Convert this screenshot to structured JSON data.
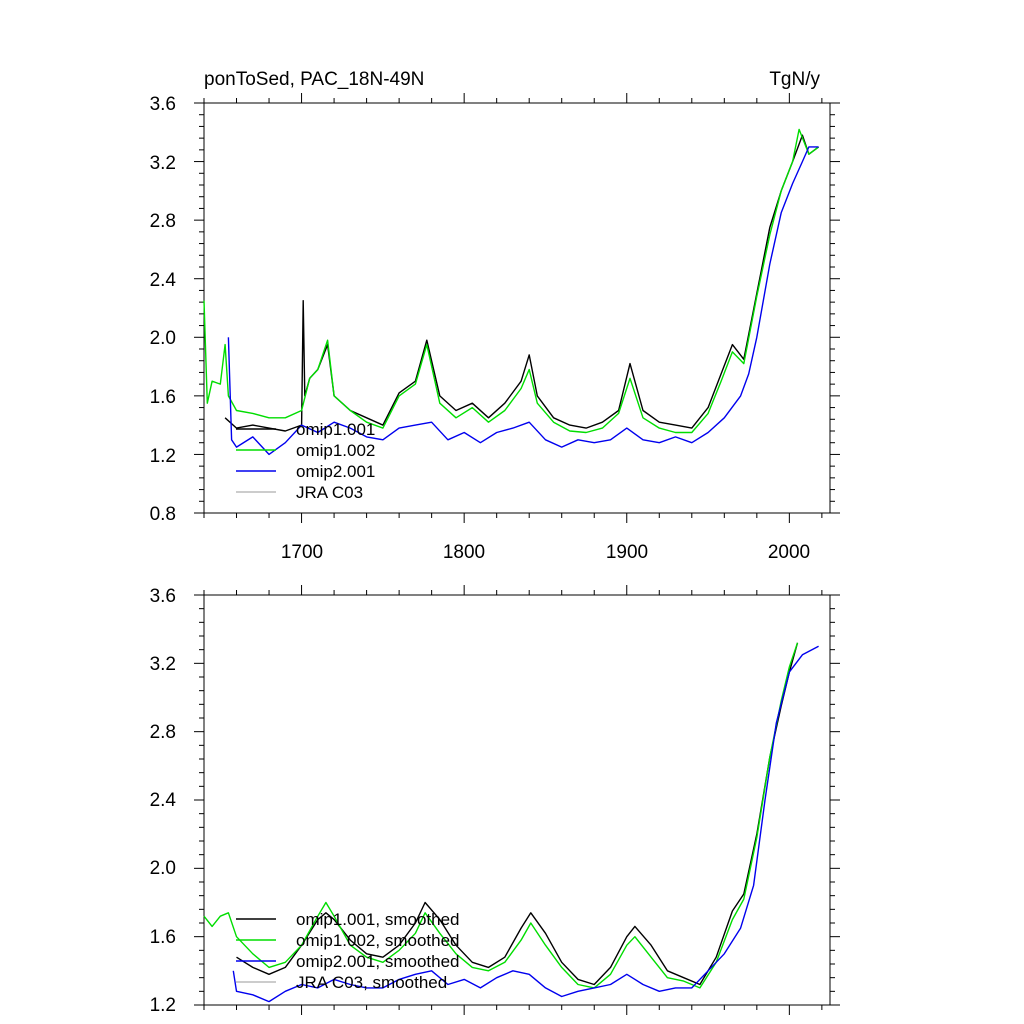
{
  "chart_data": [
    {
      "type": "line",
      "title_left": "ponToSed, PAC_18N-49N",
      "title_right": "TgN/y",
      "xlim": [
        1640,
        2025
      ],
      "ylim": [
        0.8,
        3.6
      ],
      "x_ticks": [
        1700,
        1800,
        1900,
        2000
      ],
      "y_ticks": [
        0.8,
        1.2,
        1.6,
        2.0,
        2.4,
        2.8,
        3.2,
        3.6
      ],
      "y_tick_labels": [
        "0.8",
        "1.2",
        "1.6",
        "2.0",
        "2.4",
        "2.8",
        "3.2",
        "3.6"
      ],
      "x_tick_labels": [
        "1700",
        "1800",
        "1900",
        "2000"
      ],
      "legend": [
        {
          "label": "omip1.001",
          "color": "#000000"
        },
        {
          "label": "omip1.002",
          "color": "#00dd00"
        },
        {
          "label": "omip2.001",
          "color": "#0000ee"
        },
        {
          "label": "JRA C03",
          "color": "#bbbbbb"
        }
      ],
      "series": [
        {
          "name": "omip1.001",
          "color": "#000000",
          "x": [
            1653,
            1660,
            1670,
            1680,
            1690,
            1700,
            1701,
            1702,
            1705,
            1710,
            1716,
            1720,
            1730,
            1740,
            1750,
            1760,
            1770,
            1777,
            1785,
            1795,
            1805,
            1815,
            1825,
            1835,
            1840,
            1845,
            1855,
            1865,
            1875,
            1885,
            1895,
            1902,
            1910,
            1920,
            1930,
            1940,
            1950,
            1958,
            1965,
            1972,
            1980,
            1988,
            1995,
            2002,
            2008,
            2012,
            2018
          ],
          "y": [
            1.45,
            1.38,
            1.4,
            1.38,
            1.36,
            1.4,
            2.25,
            1.6,
            1.72,
            1.78,
            1.95,
            1.6,
            1.5,
            1.45,
            1.4,
            1.62,
            1.7,
            1.98,
            1.6,
            1.5,
            1.55,
            1.45,
            1.55,
            1.7,
            1.88,
            1.6,
            1.45,
            1.4,
            1.38,
            1.42,
            1.5,
            1.82,
            1.5,
            1.42,
            1.4,
            1.38,
            1.52,
            1.75,
            1.95,
            1.85,
            2.3,
            2.75,
            3.0,
            3.2,
            3.38,
            3.25,
            3.3
          ]
        },
        {
          "name": "omip1.002",
          "color": "#00dd00",
          "x": [
            1640,
            1642,
            1645,
            1650,
            1653,
            1655,
            1660,
            1670,
            1680,
            1690,
            1700,
            1705,
            1710,
            1716,
            1720,
            1730,
            1740,
            1750,
            1760,
            1770,
            1777,
            1785,
            1795,
            1805,
            1815,
            1825,
            1835,
            1840,
            1845,
            1855,
            1865,
            1875,
            1885,
            1895,
            1902,
            1910,
            1920,
            1930,
            1940,
            1950,
            1958,
            1965,
            1972,
            1980,
            1988,
            1995,
            2002,
            2006,
            2012,
            2018
          ],
          "y": [
            2.25,
            1.55,
            1.7,
            1.68,
            1.95,
            1.6,
            1.5,
            1.48,
            1.45,
            1.45,
            1.5,
            1.72,
            1.78,
            1.98,
            1.6,
            1.5,
            1.42,
            1.38,
            1.6,
            1.68,
            1.95,
            1.55,
            1.45,
            1.52,
            1.42,
            1.5,
            1.65,
            1.78,
            1.55,
            1.42,
            1.36,
            1.35,
            1.38,
            1.48,
            1.72,
            1.45,
            1.38,
            1.35,
            1.35,
            1.48,
            1.7,
            1.9,
            1.82,
            2.28,
            2.7,
            3.0,
            3.2,
            3.42,
            3.25,
            3.3
          ]
        },
        {
          "name": "omip2.001",
          "color": "#0000ee",
          "x": [
            1655,
            1657,
            1660,
            1670,
            1680,
            1690,
            1700,
            1710,
            1720,
            1730,
            1740,
            1750,
            1760,
            1770,
            1780,
            1790,
            1800,
            1810,
            1820,
            1830,
            1840,
            1850,
            1860,
            1870,
            1880,
            1890,
            1900,
            1910,
            1920,
            1930,
            1940,
            1950,
            1960,
            1970,
            1975,
            1980,
            1988,
            1995,
            2002,
            2008,
            2012,
            2018
          ],
          "y": [
            2.0,
            1.3,
            1.25,
            1.32,
            1.2,
            1.28,
            1.4,
            1.35,
            1.42,
            1.38,
            1.32,
            1.3,
            1.38,
            1.4,
            1.42,
            1.3,
            1.35,
            1.28,
            1.35,
            1.38,
            1.42,
            1.3,
            1.25,
            1.3,
            1.28,
            1.3,
            1.38,
            1.3,
            1.28,
            1.32,
            1.28,
            1.35,
            1.45,
            1.6,
            1.75,
            2.0,
            2.5,
            2.85,
            3.05,
            3.2,
            3.3,
            3.3
          ]
        }
      ]
    },
    {
      "type": "line",
      "xlim": [
        1640,
        2025
      ],
      "ylim": [
        1.2,
        3.6
      ],
      "y_ticks": [
        1.2,
        1.6,
        2.0,
        2.4,
        2.8,
        3.2,
        3.6
      ],
      "y_tick_labels": [
        "1.2",
        "1.6",
        "2.0",
        "2.4",
        "2.8",
        "3.2",
        "3.6"
      ],
      "legend": [
        {
          "label": "omip1.001, smoothed",
          "color": "#000000"
        },
        {
          "label": "omip1.002, smoothed",
          "color": "#00dd00"
        },
        {
          "label": "omip2.001, smoothed",
          "color": "#0000ee"
        },
        {
          "label": "JRA C03, smoothed",
          "color": "#bbbbbb"
        }
      ],
      "series": [
        {
          "name": "omip1.001, smoothed",
          "color": "#000000",
          "x": [
            1660,
            1670,
            1680,
            1690,
            1700,
            1710,
            1715,
            1720,
            1730,
            1740,
            1750,
            1760,
            1770,
            1776,
            1785,
            1795,
            1805,
            1815,
            1825,
            1835,
            1841,
            1850,
            1860,
            1870,
            1880,
            1890,
            1900,
            1905,
            1915,
            1925,
            1935,
            1945,
            1955,
            1965,
            1972,
            1980,
            1988,
            1995,
            2000,
            2005
          ],
          "y": [
            1.48,
            1.42,
            1.38,
            1.42,
            1.55,
            1.7,
            1.74,
            1.7,
            1.58,
            1.5,
            1.48,
            1.55,
            1.68,
            1.8,
            1.7,
            1.55,
            1.45,
            1.42,
            1.48,
            1.65,
            1.74,
            1.62,
            1.45,
            1.35,
            1.32,
            1.42,
            1.6,
            1.66,
            1.55,
            1.4,
            1.36,
            1.32,
            1.48,
            1.75,
            1.85,
            2.2,
            2.65,
            2.95,
            3.15,
            3.32
          ]
        },
        {
          "name": "omip1.002, smoothed",
          "color": "#00dd00",
          "x": [
            1640,
            1645,
            1650,
            1655,
            1660,
            1670,
            1680,
            1690,
            1700,
            1710,
            1715,
            1720,
            1730,
            1740,
            1750,
            1760,
            1770,
            1776,
            1785,
            1795,
            1805,
            1815,
            1825,
            1835,
            1841,
            1850,
            1860,
            1870,
            1880,
            1890,
            1900,
            1905,
            1915,
            1925,
            1935,
            1945,
            1955,
            1965,
            1972,
            1980,
            1988,
            1995,
            2000,
            2005
          ],
          "y": [
            1.72,
            1.66,
            1.72,
            1.74,
            1.6,
            1.5,
            1.42,
            1.45,
            1.55,
            1.72,
            1.8,
            1.72,
            1.55,
            1.48,
            1.45,
            1.52,
            1.62,
            1.74,
            1.62,
            1.5,
            1.42,
            1.4,
            1.45,
            1.58,
            1.68,
            1.55,
            1.42,
            1.32,
            1.3,
            1.38,
            1.55,
            1.6,
            1.48,
            1.36,
            1.34,
            1.3,
            1.45,
            1.7,
            1.82,
            2.18,
            2.65,
            2.98,
            3.18,
            3.32
          ]
        },
        {
          "name": "omip2.001, smoothed",
          "color": "#0000ee",
          "x": [
            1658,
            1660,
            1670,
            1680,
            1690,
            1700,
            1710,
            1720,
            1730,
            1740,
            1750,
            1760,
            1770,
            1780,
            1790,
            1800,
            1810,
            1820,
            1830,
            1840,
            1850,
            1860,
            1870,
            1880,
            1890,
            1900,
            1910,
            1920,
            1930,
            1940,
            1950,
            1960,
            1970,
            1978,
            1985,
            1992,
            2000,
            2008,
            2018
          ],
          "y": [
            1.4,
            1.28,
            1.26,
            1.22,
            1.28,
            1.32,
            1.3,
            1.35,
            1.32,
            1.3,
            1.3,
            1.35,
            1.38,
            1.4,
            1.32,
            1.35,
            1.3,
            1.36,
            1.4,
            1.38,
            1.3,
            1.25,
            1.28,
            1.3,
            1.32,
            1.38,
            1.32,
            1.28,
            1.3,
            1.3,
            1.4,
            1.5,
            1.65,
            1.9,
            2.4,
            2.85,
            3.15,
            3.25,
            3.3
          ]
        }
      ]
    }
  ]
}
